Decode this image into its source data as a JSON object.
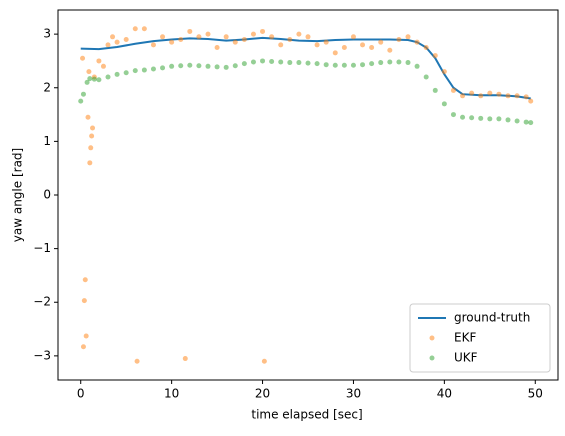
{
  "chart_data": {
    "type": "line",
    "xlabel": "time elapsed [sec]",
    "ylabel": "yaw angle [rad]",
    "xlim": [
      -2.5,
      52.5
    ],
    "ylim": [
      -3.45,
      3.45
    ],
    "xticks": [
      0,
      10,
      20,
      30,
      40,
      50
    ],
    "yticks": [
      {
        "value": -3,
        "label": "−3"
      },
      {
        "value": -2,
        "label": "−2"
      },
      {
        "value": -1,
        "label": "−1"
      },
      0,
      1,
      2,
      3
    ],
    "legend": "lower right",
    "series": [
      {
        "name": "ground-truth",
        "type": "line",
        "color": "#1f77b4",
        "x": [
          0,
          2,
          4,
          6,
          8,
          10,
          12,
          14,
          16,
          18,
          20,
          22,
          24,
          26,
          28,
          30,
          32,
          34,
          36,
          37,
          38,
          39,
          40,
          41,
          42,
          44,
          46,
          48,
          49.5
        ],
        "values": [
          2.73,
          2.72,
          2.76,
          2.82,
          2.87,
          2.9,
          2.92,
          2.91,
          2.88,
          2.9,
          2.93,
          2.91,
          2.88,
          2.87,
          2.89,
          2.9,
          2.9,
          2.9,
          2.89,
          2.85,
          2.75,
          2.55,
          2.25,
          2.0,
          1.88,
          1.86,
          1.86,
          1.84,
          1.8
        ]
      },
      {
        "name": "EKF",
        "type": "scatter",
        "color": "#ff7f0e",
        "x": [
          0.2,
          0.3,
          0.4,
          0.5,
          0.6,
          0.8,
          0.9,
          1.0,
          1.1,
          1.2,
          1.3,
          1.5,
          2,
          2.5,
          3,
          3.5,
          4,
          5,
          6,
          6.2,
          7,
          8,
          9,
          10,
          11,
          11.5,
          12,
          13,
          14,
          15,
          16,
          17,
          18,
          19,
          20,
          20.2,
          21,
          22,
          23,
          24,
          25,
          26,
          27,
          28,
          29,
          30,
          31,
          32,
          33,
          34,
          35,
          36,
          37,
          38,
          39,
          40,
          41,
          42,
          43,
          44,
          45,
          46,
          47,
          48,
          49,
          49.5
        ],
        "values": [
          2.55,
          -2.83,
          -1.97,
          -1.58,
          -2.63,
          1.45,
          2.3,
          0.6,
          0.88,
          1.1,
          1.25,
          2.2,
          2.5,
          2.4,
          2.8,
          2.95,
          2.85,
          2.9,
          3.1,
          -3.1,
          3.1,
          2.8,
          2.95,
          2.85,
          2.9,
          -3.05,
          3.05,
          2.95,
          3.0,
          2.75,
          2.95,
          2.85,
          2.9,
          3.0,
          3.05,
          -3.1,
          2.95,
          2.8,
          2.9,
          3.0,
          2.95,
          2.8,
          2.85,
          2.65,
          2.75,
          2.95,
          2.8,
          2.75,
          2.85,
          2.7,
          2.9,
          2.95,
          2.85,
          2.75,
          2.6,
          2.3,
          1.95,
          1.85,
          1.9,
          1.85,
          1.9,
          1.88,
          1.85,
          1.85,
          1.83,
          1.75
        ]
      },
      {
        "name": "UKF",
        "type": "scatter",
        "color": "#2ca02c",
        "x": [
          0,
          0.3,
          0.7,
          1,
          1.5,
          2,
          3,
          4,
          5,
          6,
          7,
          8,
          9,
          10,
          11,
          12,
          13,
          14,
          15,
          16,
          17,
          18,
          19,
          20,
          21,
          22,
          23,
          24,
          25,
          26,
          27,
          28,
          29,
          30,
          31,
          32,
          33,
          34,
          35,
          36,
          37,
          38,
          39,
          40,
          41,
          42,
          43,
          44,
          45,
          46,
          47,
          48,
          49,
          49.5
        ],
        "values": [
          1.75,
          1.88,
          2.1,
          2.17,
          2.16,
          2.15,
          2.2,
          2.25,
          2.28,
          2.32,
          2.33,
          2.35,
          2.37,
          2.4,
          2.41,
          2.42,
          2.41,
          2.4,
          2.39,
          2.38,
          2.41,
          2.45,
          2.48,
          2.5,
          2.49,
          2.48,
          2.47,
          2.47,
          2.46,
          2.45,
          2.43,
          2.42,
          2.42,
          2.42,
          2.43,
          2.45,
          2.47,
          2.48,
          2.48,
          2.47,
          2.4,
          2.2,
          1.95,
          1.7,
          1.5,
          1.45,
          1.44,
          1.43,
          1.42,
          1.42,
          1.4,
          1.38,
          1.36,
          1.35
        ]
      }
    ]
  }
}
